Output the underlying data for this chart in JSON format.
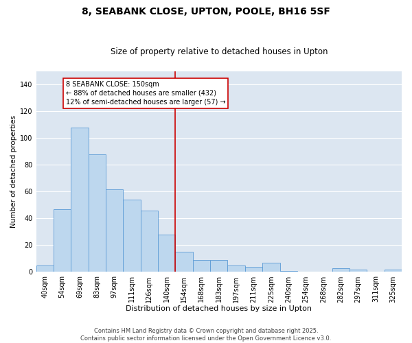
{
  "title": "8, SEABANK CLOSE, UPTON, POOLE, BH16 5SF",
  "subtitle": "Size of property relative to detached houses in Upton",
  "xlabel": "Distribution of detached houses by size in Upton",
  "ylabel": "Number of detached properties",
  "categories": [
    "40sqm",
    "54sqm",
    "69sqm",
    "83sqm",
    "97sqm",
    "111sqm",
    "126sqm",
    "140sqm",
    "154sqm",
    "168sqm",
    "183sqm",
    "197sqm",
    "211sqm",
    "225sqm",
    "240sqm",
    "254sqm",
    "268sqm",
    "282sqm",
    "297sqm",
    "311sqm",
    "325sqm"
  ],
  "values": [
    5,
    47,
    108,
    88,
    62,
    54,
    46,
    28,
    15,
    9,
    9,
    5,
    4,
    7,
    1,
    0,
    0,
    3,
    2,
    0,
    2
  ],
  "bar_color": "#bdd7ee",
  "bar_edge_color": "#5b9bd5",
  "annotation_text": "8 SEABANK CLOSE: 150sqm\n← 88% of detached houses are smaller (432)\n12% of semi-detached houses are larger (57) →",
  "annotation_box_color": "#ffffff",
  "annotation_box_edge": "#cc0000",
  "vline_color": "#cc0000",
  "vline_x_index": 8,
  "ylim": [
    0,
    150
  ],
  "yticks": [
    0,
    20,
    40,
    60,
    80,
    100,
    120,
    140
  ],
  "background_color": "#dce6f1",
  "grid_color": "#ffffff",
  "footer": "Contains HM Land Registry data © Crown copyright and database right 2025.\nContains public sector information licensed under the Open Government Licence v3.0.",
  "title_fontsize": 10,
  "subtitle_fontsize": 8.5,
  "xlabel_fontsize": 8,
  "ylabel_fontsize": 7.5,
  "tick_fontsize": 7,
  "annotation_fontsize": 7,
  "footer_fontsize": 6
}
